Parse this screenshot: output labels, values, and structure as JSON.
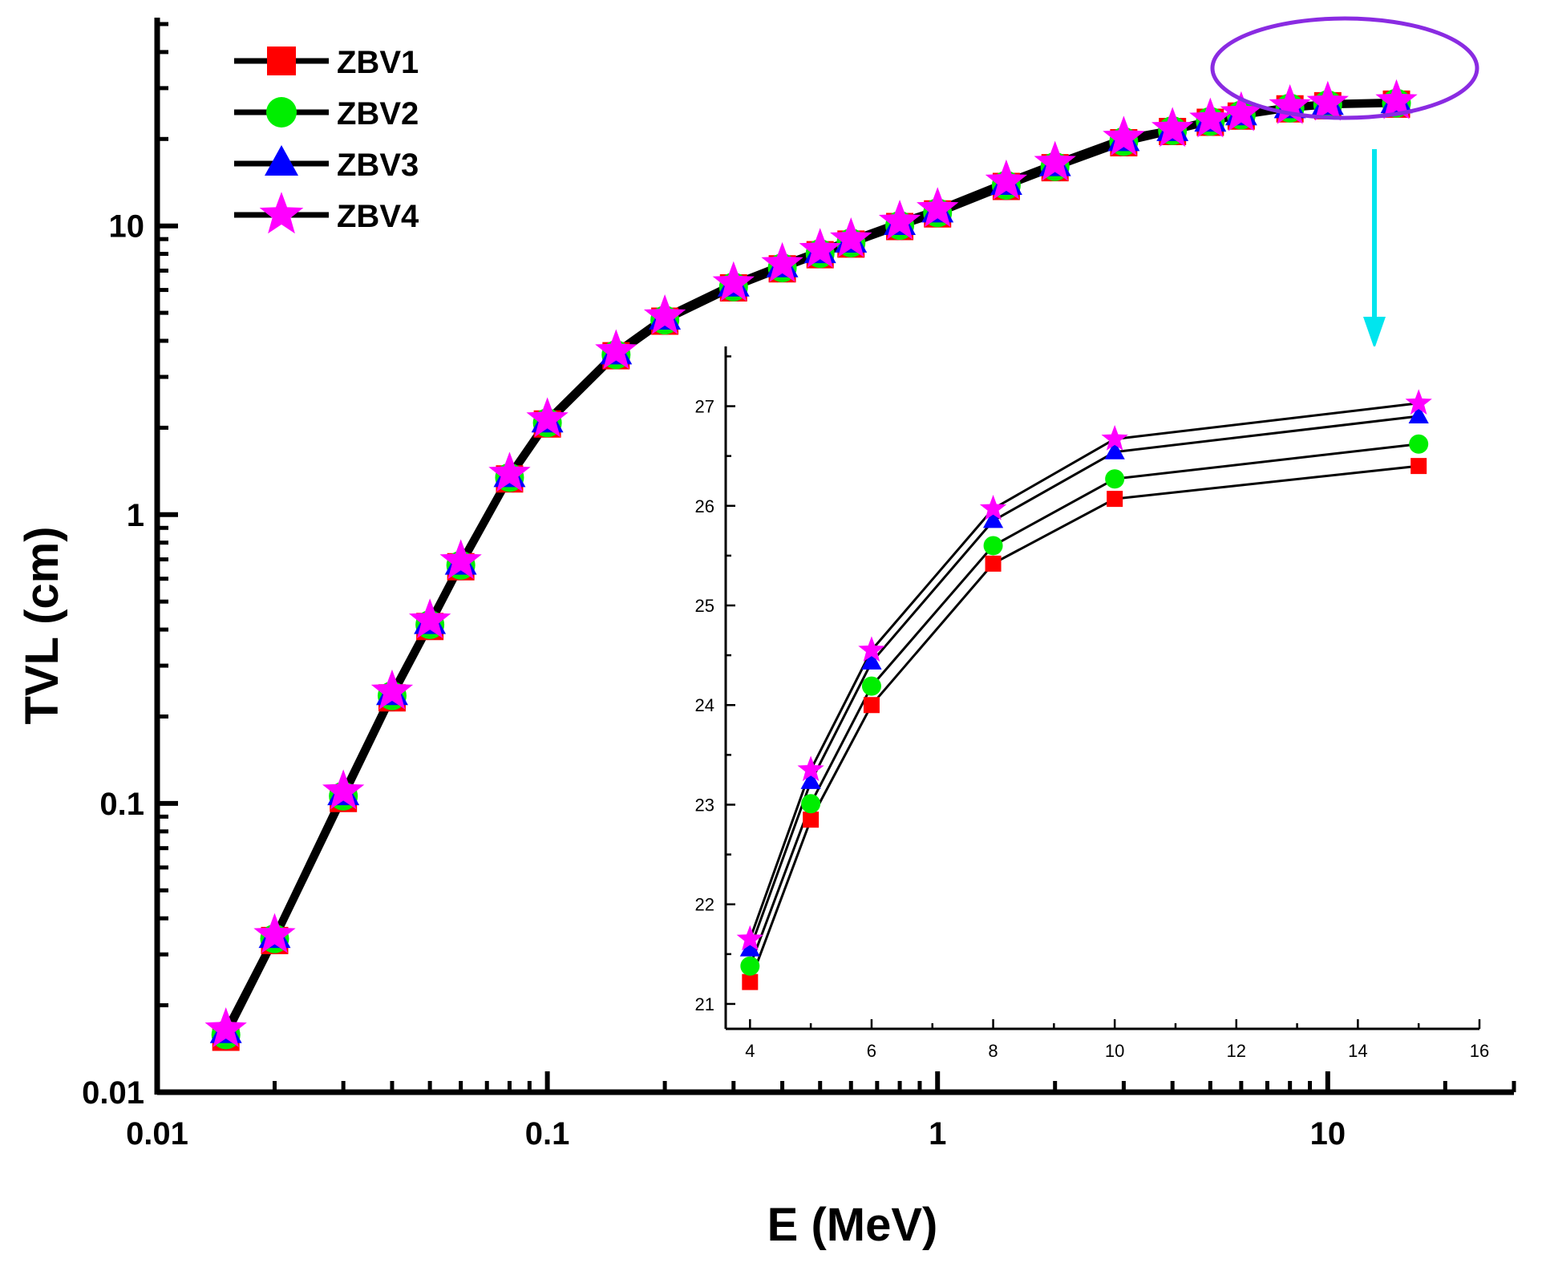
{
  "chart_data": [
    {
      "type": "line",
      "title": "",
      "xlabel": "E (MeV)",
      "ylabel": "TVL (cm)",
      "xscale": "log",
      "yscale": "log",
      "xlim": [
        0.01,
        30
      ],
      "ylim": [
        0.01,
        50
      ],
      "xticks": [
        {
          "value": 0.01,
          "label": "0.01"
        },
        {
          "value": 0.1,
          "label": "0.1"
        },
        {
          "value": 1,
          "label": "1"
        },
        {
          "value": 10,
          "label": "10"
        }
      ],
      "yticks": [
        {
          "value": 0.01,
          "label": "0.01"
        },
        {
          "value": 0.1,
          "label": "0.1"
        },
        {
          "value": 1,
          "label": "1"
        },
        {
          "value": 10,
          "label": "10"
        }
      ],
      "legend": "top-left",
      "x": [
        0.015,
        0.02,
        0.03,
        0.04,
        0.05,
        0.06,
        0.08,
        0.1,
        0.15,
        0.2,
        0.3,
        0.4,
        0.5,
        0.6,
        0.8,
        1.0,
        1.5,
        2.0,
        3.0,
        4.0,
        5.0,
        6.0,
        8.0,
        10.0,
        15.0
      ],
      "series": [
        {
          "name": "ZBV1",
          "marker": "square",
          "color": "#ff0000",
          "values": [
            0.0155,
            0.0335,
            0.104,
            0.232,
            0.41,
            0.66,
            1.33,
            2.06,
            3.55,
            4.68,
            6.1,
            7.1,
            7.95,
            8.65,
            9.95,
            11.0,
            13.7,
            15.9,
            19.4,
            21.22,
            22.85,
            24.0,
            25.42,
            26.07,
            26.4
          ]
        },
        {
          "name": "ZBV2",
          "marker": "circle",
          "color": "#00ee00",
          "values": [
            0.0158,
            0.034,
            0.106,
            0.236,
            0.416,
            0.668,
            1.345,
            2.08,
            3.58,
            4.72,
            6.15,
            7.16,
            8.02,
            8.73,
            10.04,
            11.1,
            13.83,
            16.05,
            19.6,
            21.38,
            23.01,
            24.19,
            25.6,
            26.27,
            26.62
          ]
        },
        {
          "name": "ZBV3",
          "marker": "triangle",
          "color": "#0000ff",
          "values": [
            0.0162,
            0.0346,
            0.108,
            0.24,
            0.423,
            0.679,
            1.365,
            2.11,
            3.63,
            4.79,
            6.24,
            7.27,
            8.14,
            8.85,
            10.19,
            11.26,
            14.03,
            16.29,
            19.89,
            21.55,
            23.23,
            24.43,
            25.85,
            26.54,
            26.9
          ]
        },
        {
          "name": "ZBV4",
          "marker": "star",
          "color": "#ff00ff",
          "values": [
            0.0165,
            0.035,
            0.11,
            0.244,
            0.43,
            0.69,
            1.385,
            2.14,
            3.68,
            4.86,
            6.33,
            7.37,
            8.25,
            8.98,
            10.34,
            11.43,
            14.24,
            16.53,
            20.19,
            21.65,
            23.35,
            24.55,
            25.97,
            26.67,
            27.03
          ]
        }
      ]
    },
    {
      "type": "line",
      "title": "",
      "xlabel": "",
      "ylabel": "",
      "inset_of": "main",
      "xlim": [
        3.6,
        16
      ],
      "ylim": [
        20.75,
        27.6
      ],
      "xticks": [
        "4",
        "6",
        "8",
        "10",
        "12",
        "14",
        "16"
      ],
      "yticks": [
        "21",
        "22",
        "23",
        "24",
        "25",
        "26",
        "27"
      ],
      "x": [
        4,
        5,
        6,
        8,
        10,
        15
      ],
      "series": [
        {
          "name": "ZBV1",
          "marker": "square",
          "color": "#ff0000",
          "values": [
            21.22,
            22.85,
            24.0,
            25.42,
            26.07,
            26.4
          ]
        },
        {
          "name": "ZBV2",
          "marker": "circle",
          "color": "#00ee00",
          "values": [
            21.38,
            23.01,
            24.19,
            25.6,
            26.27,
            26.62
          ]
        },
        {
          "name": "ZBV3",
          "marker": "triangle",
          "color": "#0000ff",
          "values": [
            21.55,
            23.23,
            24.43,
            25.85,
            26.54,
            26.9
          ]
        },
        {
          "name": "ZBV4",
          "marker": "star",
          "color": "#ff00ff",
          "values": [
            21.65,
            23.35,
            24.55,
            25.97,
            26.67,
            27.03
          ]
        }
      ]
    }
  ],
  "highlight": {
    "ellipse_color": "#8a2be2",
    "arrow_color": "#00e5ee"
  }
}
